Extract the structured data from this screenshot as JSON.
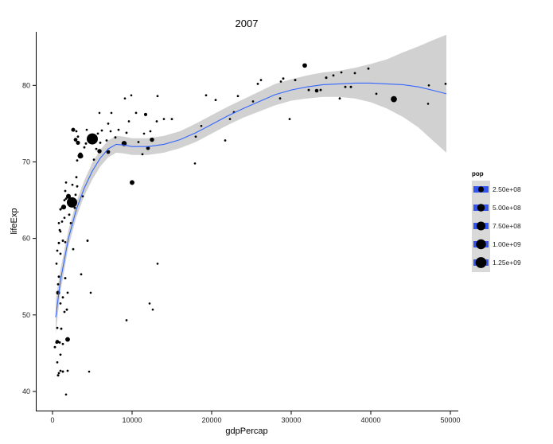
{
  "chart_data": {
    "type": "scatter",
    "title": "2007",
    "xlabel": "gdpPercap",
    "ylabel": "lifeExp",
    "xlim": [
      -2000,
      51000
    ],
    "ylim": [
      37.5,
      87
    ],
    "x_ticks": [
      0,
      10000,
      20000,
      30000,
      40000,
      50000
    ],
    "x_tick_labels": [
      "0",
      "10000",
      "20000",
      "30000",
      "40000",
      "50000"
    ],
    "y_ticks": [
      40,
      50,
      60,
      70,
      80
    ],
    "y_tick_labels": [
      "40",
      "50",
      "60",
      "70",
      "80"
    ],
    "grid": false,
    "colors": {
      "smooth": "#3366ff",
      "ribbon": "#cfcfcf",
      "point": "#000000",
      "legend_key": "#3355ee",
      "legend_bg": "#d9d9d9"
    },
    "legend": {
      "title": "pop",
      "position": "right",
      "entries": [
        {
          "label": "2.50e+08",
          "value": 250000000
        },
        {
          "label": "5.00e+08",
          "value": 500000000
        },
        {
          "label": "7.50e+08",
          "value": 750000000
        },
        {
          "label": "1.00e+09",
          "value": 1000000000
        },
        {
          "label": "1.25e+09",
          "value": 1250000000
        }
      ]
    },
    "smooth": {
      "x": [
        400,
        1000,
        2000,
        3000,
        4000,
        5000,
        6000,
        7000,
        8000,
        9000,
        10000,
        12000,
        14000,
        16000,
        18000,
        20000,
        22000,
        24000,
        26000,
        28000,
        30000,
        32000,
        34000,
        36000,
        38000,
        40000,
        42000,
        44000,
        46000,
        48000,
        49500
      ],
      "y": [
        49.7,
        54.5,
        60.0,
        63.8,
        66.6,
        68.8,
        70.5,
        71.7,
        72.3,
        72.2,
        72.0,
        72.0,
        72.3,
        72.9,
        73.8,
        74.9,
        76.0,
        77.0,
        77.9,
        78.8,
        79.4,
        79.8,
        80.1,
        80.2,
        80.3,
        80.3,
        80.2,
        80.1,
        79.8,
        79.3,
        78.9
      ],
      "ymin": [
        47.5,
        53.0,
        58.9,
        62.8,
        65.6,
        67.7,
        69.4,
        70.6,
        71.2,
        71.1,
        70.9,
        70.9,
        71.2,
        71.8,
        72.6,
        73.7,
        74.8,
        75.8,
        76.6,
        77.4,
        78.0,
        78.3,
        78.5,
        78.5,
        78.3,
        77.8,
        77.0,
        75.9,
        74.5,
        72.6,
        71.2
      ],
      "ymax": [
        51.9,
        56.0,
        61.1,
        64.8,
        67.6,
        69.9,
        71.6,
        72.8,
        73.4,
        73.3,
        73.1,
        73.1,
        73.4,
        74.0,
        75.0,
        76.1,
        77.2,
        78.2,
        79.2,
        80.2,
        80.8,
        81.3,
        81.7,
        81.9,
        82.3,
        82.8,
        83.4,
        84.3,
        85.1,
        86.0,
        86.6
      ]
    },
    "points": [
      {
        "x": 5000,
        "y": 73.0,
        "pop": 1320000000
      },
      {
        "x": 2450,
        "y": 64.7,
        "pop": 1110000000
      },
      {
        "x": 3500,
        "y": 70.8,
        "pop": 224000000
      },
      {
        "x": 1900,
        "y": 46.8,
        "pop": 135000000
      },
      {
        "x": 2000,
        "y": 65.5,
        "pop": 150000000
      },
      {
        "x": 42900,
        "y": 78.2,
        "pop": 301000000
      },
      {
        "x": 9000,
        "y": 72.4,
        "pop": 190000000
      },
      {
        "x": 31700,
        "y": 82.6,
        "pop": 127000000
      },
      {
        "x": 2600,
        "y": 74.2,
        "pop": 85000000
      },
      {
        "x": 5900,
        "y": 71.4,
        "pop": 108000000
      },
      {
        "x": 12500,
        "y": 72.9,
        "pop": 108000000
      },
      {
        "x": 1400,
        "y": 64.1,
        "pop": 159000000
      },
      {
        "x": 10000,
        "y": 67.3,
        "pop": 142000000
      },
      {
        "x": 3200,
        "y": 72.5,
        "pop": 91000000
      },
      {
        "x": 700,
        "y": 52.9,
        "pop": 77000000
      },
      {
        "x": 2900,
        "y": 72.9,
        "pop": 69000000
      },
      {
        "x": 3500,
        "y": 71.0,
        "pop": 65000000
      },
      {
        "x": 12000,
        "y": 71.8,
        "pop": 65000000
      },
      {
        "x": 7000,
        "y": 71.3,
        "pop": 71000000
      },
      {
        "x": 600,
        "y": 46.5,
        "pop": 64000000
      },
      {
        "x": 500,
        "y": 46.4,
        "pop": 12000000
      },
      {
        "x": 300,
        "y": 45.8,
        "pop": 8000000
      },
      {
        "x": 600,
        "y": 43.8,
        "pop": 5000000
      },
      {
        "x": 800,
        "y": 42.4,
        "pop": 6000000
      },
      {
        "x": 700,
        "y": 42.1,
        "pop": 9000000
      },
      {
        "x": 1000,
        "y": 42.7,
        "pop": 5000000
      },
      {
        "x": 1300,
        "y": 42.6,
        "pop": 7000000
      },
      {
        "x": 1700,
        "y": 39.6,
        "pop": 4000000
      },
      {
        "x": 1000,
        "y": 44.8,
        "pop": 5000000
      },
      {
        "x": 1300,
        "y": 46.2,
        "pop": 6000000
      },
      {
        "x": 1900,
        "y": 42.7,
        "pop": 6000000
      },
      {
        "x": 900,
        "y": 46.4,
        "pop": 8000000
      },
      {
        "x": 600,
        "y": 48.3,
        "pop": 5000000
      },
      {
        "x": 1100,
        "y": 48.2,
        "pop": 7000000
      },
      {
        "x": 1500,
        "y": 50.4,
        "pop": 6000000
      },
      {
        "x": 1800,
        "y": 50.7,
        "pop": 8000000
      },
      {
        "x": 1300,
        "y": 52.3,
        "pop": 6000000
      },
      {
        "x": 1000,
        "y": 51.5,
        "pop": 5000000
      },
      {
        "x": 800,
        "y": 55.0,
        "pop": 9000000
      },
      {
        "x": 700,
        "y": 54.0,
        "pop": 6000000
      },
      {
        "x": 1600,
        "y": 54.8,
        "pop": 7000000
      },
      {
        "x": 1900,
        "y": 52.9,
        "pop": 5000000
      },
      {
        "x": 3600,
        "y": 55.3,
        "pop": 5000000
      },
      {
        "x": 500,
        "y": 56.7,
        "pop": 5000000
      },
      {
        "x": 600,
        "y": 58.4,
        "pop": 6000000
      },
      {
        "x": 800,
        "y": 59.4,
        "pop": 8000000
      },
      {
        "x": 1000,
        "y": 58.0,
        "pop": 6000000
      },
      {
        "x": 1300,
        "y": 59.7,
        "pop": 7000000
      },
      {
        "x": 1600,
        "y": 59.5,
        "pop": 5000000
      },
      {
        "x": 2600,
        "y": 58.6,
        "pop": 6000000
      },
      {
        "x": 4400,
        "y": 59.7,
        "pop": 7000000
      },
      {
        "x": 900,
        "y": 61.1,
        "pop": 5000000
      },
      {
        "x": 1200,
        "y": 62.2,
        "pop": 6000000
      },
      {
        "x": 1000,
        "y": 60.9,
        "pop": 4000000
      },
      {
        "x": 1500,
        "y": 62.7,
        "pop": 5000000
      },
      {
        "x": 2100,
        "y": 63.1,
        "pop": 8000000
      },
      {
        "x": 2300,
        "y": 62.0,
        "pop": 6000000
      },
      {
        "x": 800,
        "y": 62.0,
        "pop": 5000000
      },
      {
        "x": 1000,
        "y": 63.8,
        "pop": 9000000
      },
      {
        "x": 1200,
        "y": 64.0,
        "pop": 7000000
      },
      {
        "x": 1500,
        "y": 65.0,
        "pop": 6000000
      },
      {
        "x": 1700,
        "y": 65.2,
        "pop": 6000000
      },
      {
        "x": 2900,
        "y": 65.7,
        "pop": 6000000
      },
      {
        "x": 3800,
        "y": 65.5,
        "pop": 5000000
      },
      {
        "x": 1600,
        "y": 66.2,
        "pop": 6000000
      },
      {
        "x": 1700,
        "y": 67.3,
        "pop": 5000000
      },
      {
        "x": 3100,
        "y": 66.8,
        "pop": 6000000
      },
      {
        "x": 2800,
        "y": 64.0,
        "pop": 7000000
      },
      {
        "x": 2500,
        "y": 67.0,
        "pop": 5000000
      },
      {
        "x": 3000,
        "y": 68.0,
        "pop": 6000000
      },
      {
        "x": 3100,
        "y": 70.2,
        "pop": 6000000
      },
      {
        "x": 3700,
        "y": 70.7,
        "pop": 7000000
      },
      {
        "x": 4000,
        "y": 71.9,
        "pop": 6000000
      },
      {
        "x": 4200,
        "y": 72.4,
        "pop": 8000000
      },
      {
        "x": 3200,
        "y": 73.3,
        "pop": 6000000
      },
      {
        "x": 3000,
        "y": 74.0,
        "pop": 5000000
      },
      {
        "x": 4300,
        "y": 74.2,
        "pop": 4000000
      },
      {
        "x": 5500,
        "y": 71.7,
        "pop": 6000000
      },
      {
        "x": 6000,
        "y": 72.5,
        "pop": 7000000
      },
      {
        "x": 6200,
        "y": 74.1,
        "pop": 6000000
      },
      {
        "x": 5200,
        "y": 70.3,
        "pop": 5000000
      },
      {
        "x": 6800,
        "y": 72.8,
        "pop": 6000000
      },
      {
        "x": 7000,
        "y": 75.0,
        "pop": 5000000
      },
      {
        "x": 7300,
        "y": 74.0,
        "pop": 4000000
      },
      {
        "x": 5900,
        "y": 76.4,
        "pop": 3000000
      },
      {
        "x": 7900,
        "y": 73.2,
        "pop": 6000000
      },
      {
        "x": 8300,
        "y": 74.2,
        "pop": 5000000
      },
      {
        "x": 9300,
        "y": 73.8,
        "pop": 6000000
      },
      {
        "x": 9600,
        "y": 75.3,
        "pop": 4000000
      },
      {
        "x": 10500,
        "y": 76.4,
        "pop": 5000000
      },
      {
        "x": 10800,
        "y": 72.6,
        "pop": 6000000
      },
      {
        "x": 11300,
        "y": 71.0,
        "pop": 5000000
      },
      {
        "x": 11500,
        "y": 73.7,
        "pop": 4000000
      },
      {
        "x": 12300,
        "y": 74.0,
        "pop": 5000000
      },
      {
        "x": 11700,
        "y": 76.2,
        "pop": 40000000
      },
      {
        "x": 13100,
        "y": 75.3,
        "pop": 6000000
      },
      {
        "x": 14000,
        "y": 75.6,
        "pop": 4000000
      },
      {
        "x": 15000,
        "y": 75.6,
        "pop": 6000000
      },
      {
        "x": 9100,
        "y": 78.3,
        "pop": 4000000
      },
      {
        "x": 9900,
        "y": 78.7,
        "pop": 3000000
      },
      {
        "x": 13200,
        "y": 78.6,
        "pop": 5000000
      },
      {
        "x": 7400,
        "y": 76.4,
        "pop": 4000000
      },
      {
        "x": 5700,
        "y": 73.7,
        "pop": 5000000
      },
      {
        "x": 9300,
        "y": 49.3,
        "pop": 5000000
      },
      {
        "x": 12200,
        "y": 51.5,
        "pop": 4000000
      },
      {
        "x": 12600,
        "y": 50.7,
        "pop": 3000000
      },
      {
        "x": 13200,
        "y": 56.7,
        "pop": 4000000
      },
      {
        "x": 4800,
        "y": 52.9,
        "pop": 3000000
      },
      {
        "x": 4600,
        "y": 42.6,
        "pop": 3000000
      },
      {
        "x": 17900,
        "y": 69.8,
        "pop": 4000000
      },
      {
        "x": 18000,
        "y": 73.3,
        "pop": 5000000
      },
      {
        "x": 18700,
        "y": 74.7,
        "pop": 4000000
      },
      {
        "x": 19300,
        "y": 78.7,
        "pop": 5000000
      },
      {
        "x": 20500,
        "y": 78.1,
        "pop": 6000000
      },
      {
        "x": 21700,
        "y": 72.8,
        "pop": 5000000
      },
      {
        "x": 22300,
        "y": 75.6,
        "pop": 4000000
      },
      {
        "x": 22800,
        "y": 76.5,
        "pop": 6000000
      },
      {
        "x": 23300,
        "y": 78.6,
        "pop": 5000000
      },
      {
        "x": 25200,
        "y": 77.9,
        "pop": 4000000
      },
      {
        "x": 25800,
        "y": 80.2,
        "pop": 6000000
      },
      {
        "x": 26200,
        "y": 80.7,
        "pop": 5000000
      },
      {
        "x": 28600,
        "y": 78.3,
        "pop": 6000000
      },
      {
        "x": 28700,
        "y": 80.5,
        "pop": 5000000
      },
      {
        "x": 29000,
        "y": 80.9,
        "pop": 6000000
      },
      {
        "x": 29800,
        "y": 75.6,
        "pop": 5000000
      },
      {
        "x": 30500,
        "y": 80.7,
        "pop": 7000000
      },
      {
        "x": 32200,
        "y": 79.4,
        "pop": 8000000
      },
      {
        "x": 33200,
        "y": 79.3,
        "pop": 60000000
      },
      {
        "x": 33700,
        "y": 79.4,
        "pop": 7000000
      },
      {
        "x": 34400,
        "y": 81.0,
        "pop": 10000000
      },
      {
        "x": 35300,
        "y": 81.3,
        "pop": 6000000
      },
      {
        "x": 36100,
        "y": 78.3,
        "pop": 6000000
      },
      {
        "x": 36800,
        "y": 79.8,
        "pop": 8000000
      },
      {
        "x": 36300,
        "y": 81.7,
        "pop": 5000000
      },
      {
        "x": 37500,
        "y": 79.8,
        "pop": 9000000
      },
      {
        "x": 38000,
        "y": 81.6,
        "pop": 6000000
      },
      {
        "x": 39700,
        "y": 82.2,
        "pop": 6000000
      },
      {
        "x": 40700,
        "y": 78.9,
        "pop": 5000000
      },
      {
        "x": 47300,
        "y": 80.0,
        "pop": 4000000
      },
      {
        "x": 47200,
        "y": 77.6,
        "pop": 3000000
      },
      {
        "x": 49400,
        "y": 80.2,
        "pop": 5000000
      }
    ]
  }
}
